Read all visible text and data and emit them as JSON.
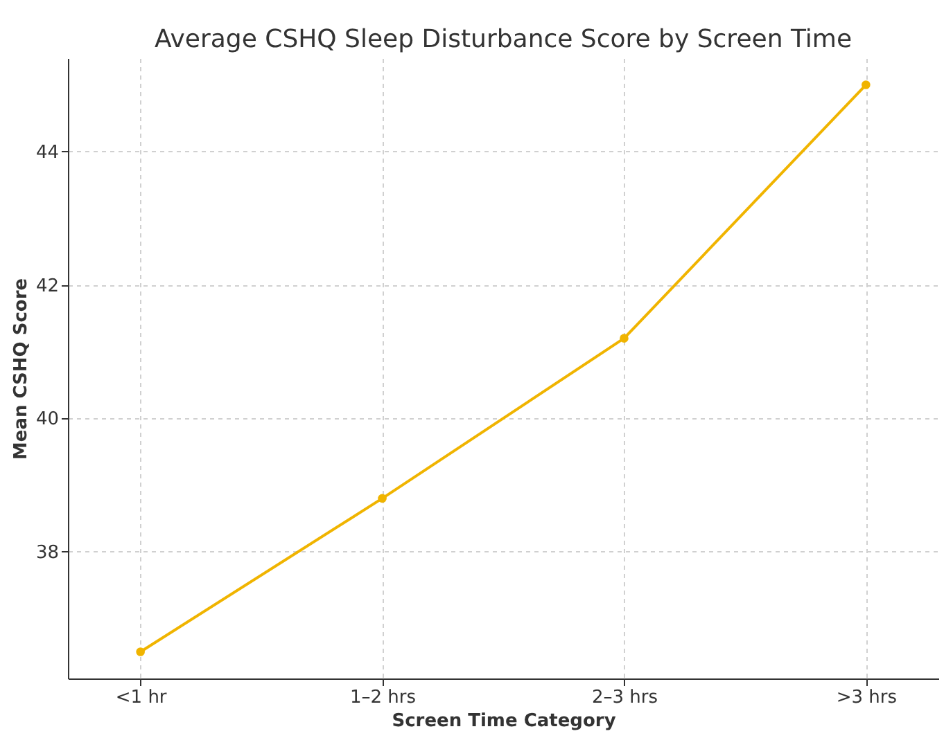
{
  "chart_data": {
    "type": "line",
    "title": "Average CSHQ Sleep Disturbance Score by Screen Time",
    "xlabel": "Screen Time Category",
    "ylabel": "Mean CSHQ Score",
    "categories": [
      "<1 hr",
      "1–2 hrs",
      "2–3 hrs",
      ">3 hrs"
    ],
    "series": [
      {
        "color": "#f0b400",
        "values": [
          36.5,
          38.8,
          41.2,
          45.0
        ]
      }
    ],
    "ylim": [
      36.1,
      45.4
    ],
    "yticks": [
      38,
      40,
      42,
      44
    ],
    "grid": true,
    "marker": "circle",
    "line_style": "solid"
  }
}
